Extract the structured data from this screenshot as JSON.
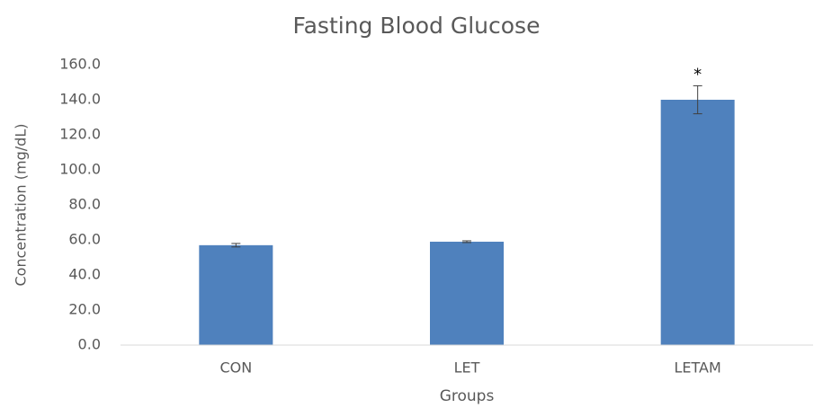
{
  "chart_data": {
    "type": "bar",
    "title": "Fasting Blood Glucose",
    "x_label": "Groups",
    "y_label": "Concentration (mg/dL)",
    "categories": [
      "CON",
      "LET",
      "LETAM"
    ],
    "values": [
      57,
      59,
      140
    ],
    "errors": [
      1,
      0.5,
      8
    ],
    "color": "#4f81bd",
    "annotations": [
      {
        "text": "*",
        "category": "LETAM"
      }
    ],
    "ylim": [
      0,
      160
    ],
    "yticks": [
      {
        "value": 0,
        "label": "0.0"
      },
      {
        "value": 20,
        "label": "20.0"
      },
      {
        "value": 40,
        "label": "40.0"
      },
      {
        "value": 60,
        "label": "60.0"
      },
      {
        "value": 80,
        "label": "80.0"
      },
      {
        "value": 100,
        "label": "100.0"
      },
      {
        "value": 120,
        "label": "120.0"
      },
      {
        "value": 140,
        "label": "140.0"
      },
      {
        "value": 160,
        "label": "160.0"
      }
    ],
    "grid": false
  }
}
